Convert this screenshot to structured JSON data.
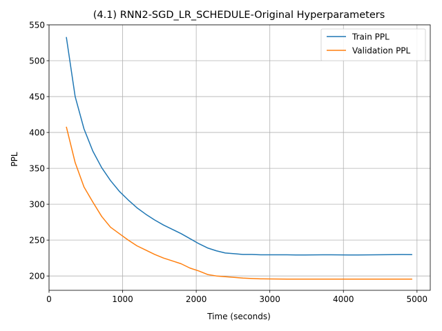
{
  "chart_data": {
    "type": "line",
    "title": "(4.1) RNN2-SGD_LR_SCHEDULE-Original Hyperparameters",
    "xlabel": "Time (seconds)",
    "ylabel": "PPL",
    "xlim": [
      0,
      5180
    ],
    "ylim": [
      180,
      550
    ],
    "xticks": [
      0,
      1000,
      2000,
      3000,
      4000,
      5000
    ],
    "yticks": [
      200,
      250,
      300,
      350,
      400,
      450,
      500,
      550
    ],
    "grid": true,
    "legend_position": "top-right",
    "series": [
      {
        "name": "Train PPL",
        "color": "#1f77b4",
        "x": [
          235,
          355,
          475,
          595,
          715,
          835,
          955,
          1075,
          1195,
          1315,
          1435,
          1555,
          1675,
          1795,
          1915,
          2035,
          2155,
          2275,
          2395,
          2515,
          2635,
          2755,
          2875,
          2995,
          3115,
          3235,
          3355,
          3475,
          3595,
          3715,
          3835,
          3955,
          4075,
          4195,
          4315,
          4435,
          4555,
          4675,
          4795,
          4935
        ],
        "y": [
          533,
          450,
          405,
          374,
          351,
          333,
          318,
          306,
          295,
          286,
          278,
          271,
          265,
          259,
          252,
          245,
          239,
          235,
          232,
          231,
          230,
          230,
          229.5,
          229.5,
          229.5,
          229.5,
          229.3,
          229.3,
          229.4,
          229.5,
          229.5,
          229.4,
          229.3,
          229.2,
          229.4,
          229.5,
          229.6,
          229.7,
          229.8,
          229.7
        ]
      },
      {
        "name": "Validation PPL",
        "color": "#ff7f0e",
        "x": [
          235,
          355,
          475,
          595,
          715,
          835,
          955,
          1075,
          1195,
          1315,
          1435,
          1555,
          1675,
          1795,
          1915,
          2035,
          2155,
          2275,
          2395,
          2515,
          2635,
          2755,
          2875,
          2995,
          3115,
          3235,
          3355,
          3475,
          3595,
          3715,
          3835,
          3955,
          4075,
          4195,
          4315,
          4435,
          4555,
          4675,
          4795,
          4935
        ],
        "y": [
          408,
          358,
          324,
          303,
          283,
          268,
          259,
          250,
          242,
          236,
          230,
          225,
          221,
          217,
          211,
          207,
          202,
          200,
          199,
          198,
          197,
          196.5,
          196,
          195.8,
          195.7,
          195.6,
          195.6,
          195.6,
          195.6,
          195.6,
          195.6,
          195.6,
          195.6,
          195.6,
          195.6,
          195.6,
          195.6,
          195.6,
          195.6,
          195.6
        ]
      }
    ]
  }
}
